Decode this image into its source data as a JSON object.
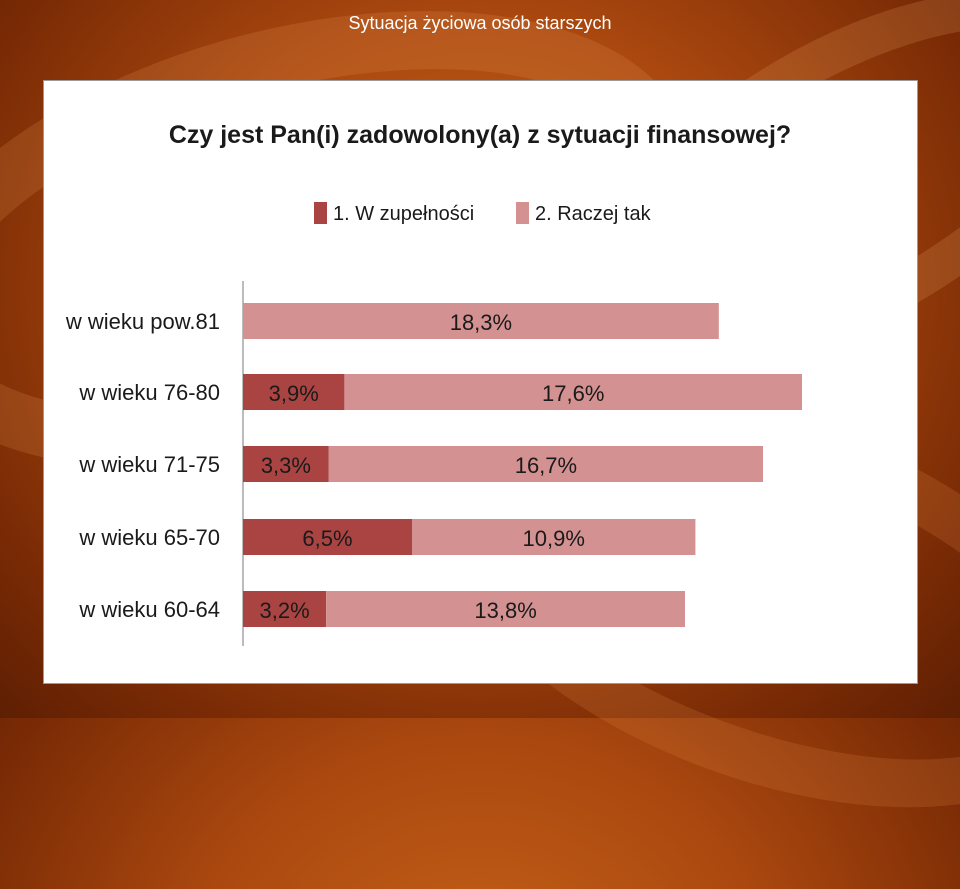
{
  "slide": {
    "title": "Sytuacja życiowa osób starszych"
  },
  "colors": {
    "series1": "#a94442",
    "series2": "#d49191",
    "axis": "#a6a6a6",
    "text": "#1a1a1a"
  },
  "chart_data": {
    "type": "bar",
    "orientation": "horizontal",
    "stacked": true,
    "title": "Czy jest Pan(i) zadowolony(a) z sytuacji finansowej?",
    "legend_position": "top",
    "grid": false,
    "categories": [
      "w wieku pow.81",
      "w wieku 76-80",
      "w wieku 71-75",
      "w wieku 65-70",
      "w wieku 60-64"
    ],
    "series": [
      {
        "name": "1. W zupełności",
        "values": [
          null,
          3.9,
          3.3,
          6.5,
          3.2
        ],
        "labels": [
          "",
          "3,9%",
          "3,3%",
          "6,5%",
          "3,2%"
        ]
      },
      {
        "name": "2. Raczej tak",
        "values": [
          18.3,
          17.6,
          16.7,
          10.9,
          13.8
        ],
        "labels": [
          "18,3%",
          "17,6%",
          "16,7%",
          "10,9%",
          "13,8%"
        ]
      }
    ]
  }
}
